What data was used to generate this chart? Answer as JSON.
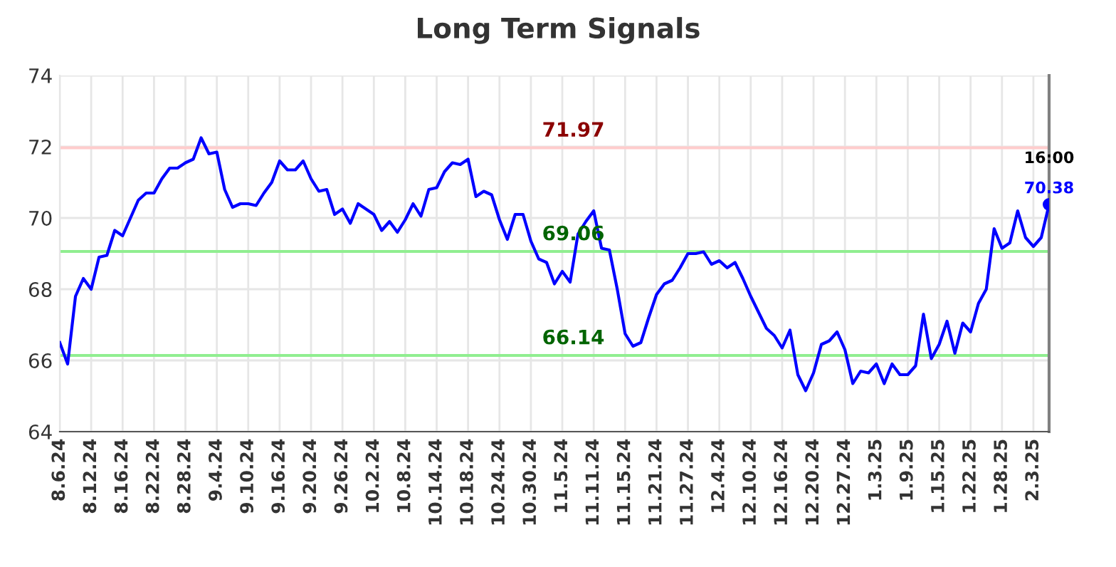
{
  "chart_data": {
    "type": "line",
    "title": "Long Term Signals",
    "categories": [
      "8.6.24",
      null,
      null,
      null,
      "8.12.24",
      null,
      null,
      null,
      "8.16.24",
      null,
      null,
      null,
      "8.22.24",
      null,
      null,
      null,
      "8.28.24",
      null,
      null,
      null,
      "9.4.24",
      null,
      null,
      null,
      "9.10.24",
      null,
      null,
      null,
      "9.16.24",
      null,
      null,
      null,
      "9.20.24",
      null,
      null,
      null,
      "9.26.24",
      null,
      null,
      null,
      "10.2.24",
      null,
      null,
      null,
      "10.8.24",
      null,
      null,
      null,
      "10.14.24",
      null,
      null,
      null,
      "10.18.24",
      null,
      null,
      null,
      "10.24.24",
      null,
      null,
      null,
      "10.30.24",
      null,
      null,
      null,
      "11.5.24",
      null,
      null,
      null,
      "11.11.24",
      null,
      null,
      null,
      "11.15.24",
      null,
      null,
      null,
      "11.21.24",
      null,
      null,
      null,
      "11.27.24",
      null,
      null,
      null,
      "12.4.24",
      null,
      null,
      null,
      "12.10.24",
      null,
      null,
      null,
      "12.16.24",
      null,
      null,
      null,
      "12.20.24",
      null,
      null,
      null,
      "12.27.24",
      null,
      null,
      null,
      "1.3.25",
      null,
      null,
      null,
      "1.9.25",
      null,
      null,
      null,
      "1.15.25",
      null,
      null,
      null,
      "1.22.25",
      null,
      null,
      null,
      "1.28.25",
      null,
      null,
      null,
      "2.3.25",
      null,
      null
    ],
    "series": [
      {
        "color": "#0000ff",
        "values": [
          66.5,
          65.9,
          67.8,
          68.3,
          68.0,
          68.9,
          68.95,
          69.65,
          69.5,
          70.0,
          70.5,
          70.7,
          70.7,
          71.1,
          71.4,
          71.4,
          71.55,
          71.65,
          72.25,
          71.8,
          71.85,
          70.8,
          70.3,
          70.4,
          70.4,
          70.35,
          70.7,
          71.0,
          71.6,
          71.35,
          71.35,
          71.6,
          71.1,
          70.75,
          70.8,
          70.1,
          70.25,
          69.85,
          70.4,
          70.25,
          70.1,
          69.65,
          69.9,
          69.6,
          69.95,
          70.4,
          70.05,
          70.8,
          70.85,
          71.3,
          71.55,
          71.5,
          71.65,
          70.6,
          70.75,
          70.65,
          69.95,
          69.4,
          70.1,
          70.1,
          69.35,
          68.85,
          68.75,
          68.15,
          68.5,
          68.2,
          69.55,
          69.9,
          70.2,
          69.15,
          69.1,
          68.0,
          66.75,
          66.4,
          66.5,
          67.2,
          67.85,
          68.15,
          68.25,
          68.6,
          69.0,
          69.0,
          69.05,
          68.7,
          68.8,
          68.6,
          68.75,
          68.3,
          67.8,
          67.35,
          66.9,
          66.7,
          66.35,
          66.85,
          65.6,
          65.15,
          65.65,
          66.45,
          66.55,
          66.8,
          66.3,
          65.35,
          65.7,
          65.65,
          65.9,
          65.35,
          65.9,
          65.6,
          65.6,
          65.85,
          67.3,
          66.05,
          66.45,
          67.1,
          66.2,
          67.05,
          66.8,
          67.6,
          68.0,
          69.7,
          69.15,
          69.3,
          70.2,
          69.45,
          69.2,
          69.45,
          70.38
        ]
      },
      {
        "type": "scatter",
        "color": "#0000ff",
        "marker": "circle",
        "values": [
          null,
          null,
          null,
          null,
          null,
          null,
          null,
          null,
          null,
          null,
          null,
          null,
          null,
          null,
          null,
          null,
          null,
          null,
          null,
          null,
          null,
          null,
          null,
          null,
          null,
          null,
          null,
          null,
          null,
          null,
          null,
          null,
          null,
          null,
          null,
          null,
          null,
          null,
          null,
          null,
          null,
          null,
          null,
          null,
          null,
          null,
          null,
          null,
          null,
          null,
          null,
          null,
          null,
          null,
          null,
          null,
          null,
          null,
          null,
          null,
          null,
          null,
          null,
          null,
          null,
          null,
          null,
          null,
          null,
          null,
          null,
          null,
          null,
          null,
          null,
          null,
          null,
          null,
          null,
          null,
          null,
          null,
          null,
          null,
          null,
          null,
          null,
          null,
          null,
          null,
          null,
          null,
          null,
          null,
          null,
          null,
          null,
          null,
          null,
          null,
          null,
          null,
          null,
          null,
          null,
          null,
          null,
          null,
          null,
          null,
          null,
          null,
          null,
          null,
          null,
          null,
          null,
          null,
          null,
          null,
          null,
          null,
          null,
          null,
          null,
          null,
          70.38
        ]
      }
    ],
    "ylim": [
      64,
      74
    ],
    "yticks": [
      64,
      66,
      68,
      70,
      72,
      74
    ],
    "grid": true,
    "marker": "none",
    "line_style": "solid",
    "ref_lines": [
      {
        "axis": "y",
        "value": 71.97,
        "label": "71.97",
        "color": "#ffcccc"
      },
      {
        "axis": "y",
        "value": 69.06,
        "label": "69.06",
        "color": "#90ee90"
      },
      {
        "axis": "y",
        "value": 66.14,
        "label": "66.14",
        "color": "#90ee90"
      }
    ],
    "annotations": [
      "16:00",
      {
        "text": "70.38",
        "y": 70.38
      }
    ]
  }
}
